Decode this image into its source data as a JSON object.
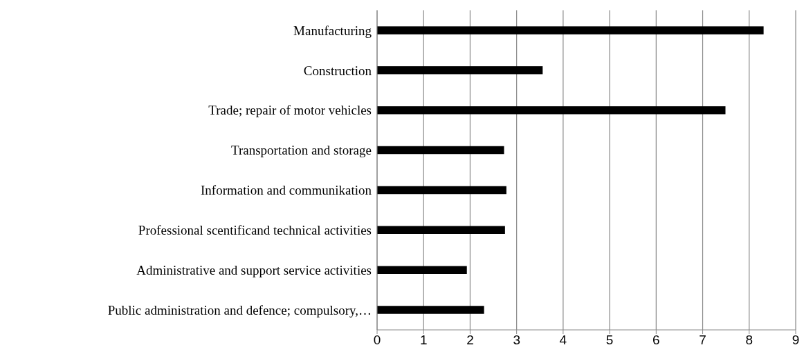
{
  "chart_data": {
    "type": "bar",
    "orientation": "horizontal",
    "categories": [
      "Manufacturing",
      "Construction",
      "Trade; repair of motor vehicles",
      "Transportation and storage",
      "Information and communikation",
      "Professional scentificand technical activities",
      "Administrative and support service activities",
      "Public administration and defence; compulsory,…"
    ],
    "values": [
      8.31,
      3.56,
      7.49,
      2.73,
      2.78,
      2.75,
      1.93,
      2.3
    ],
    "color": "#000000",
    "xlim": [
      0,
      9
    ],
    "xticks": [
      0,
      1,
      2,
      3,
      4,
      5,
      6,
      7,
      8,
      9
    ],
    "grid": "x",
    "legend": false
  }
}
